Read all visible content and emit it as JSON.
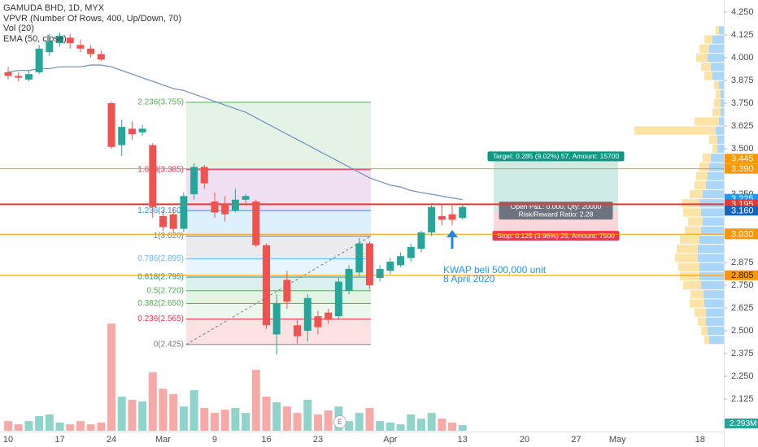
{
  "header": {
    "symbol": "GAMUDA BHD, 1D, MYX",
    "indicators": [
      "VPVR (Number Of Rows, 400, Up/Down, 70)",
      "Vol (20)",
      "EMA (50, close)"
    ]
  },
  "chart_data": {
    "type": "candlestick",
    "categories": [
      "10",
      null,
      null,
      null,
      null,
      "17",
      null,
      null,
      null,
      null,
      "24",
      null,
      null,
      null,
      null,
      "Mar",
      null,
      null,
      null,
      null,
      "9",
      null,
      null,
      null,
      null,
      "16",
      null,
      null,
      null,
      null,
      "23",
      null,
      null,
      null,
      null,
      null,
      null,
      "Apr",
      null,
      null,
      null,
      null,
      null,
      null,
      "13"
    ],
    "open": [
      3.92,
      3.9,
      3.88,
      3.92,
      4.03,
      4.08,
      4.11,
      4.07,
      4.05,
      4.02,
      3.75,
      3.52,
      3.61,
      3.59,
      3.52,
      3.13,
      3.14,
      3.06,
      3.25,
      3.4,
      3.21,
      3.2,
      3.16,
      3.22,
      3.21,
      2.97,
      2.48,
      2.78,
      2.53,
      2.5,
      2.58,
      2.6,
      2.58,
      2.72,
      2.82,
      2.98,
      2.79,
      2.83,
      2.86,
      2.9,
      2.95,
      3.04,
      3.13,
      3.14,
      3.12
    ],
    "high": [
      3.95,
      3.92,
      3.93,
      4.07,
      4.13,
      4.14,
      4.13,
      4.1,
      4.07,
      4.04,
      3.76,
      3.66,
      3.65,
      3.63,
      3.53,
      3.16,
      3.18,
      3.26,
      3.42,
      3.41,
      3.26,
      3.24,
      3.28,
      3.25,
      3.22,
      2.98,
      2.7,
      2.83,
      2.56,
      2.7,
      2.61,
      2.62,
      2.79,
      2.86,
      3.01,
      2.99,
      2.86,
      2.9,
      2.93,
      2.98,
      3.05,
      3.2,
      3.2,
      3.2,
      3.19
    ],
    "low": [
      3.88,
      3.87,
      3.87,
      3.91,
      4.01,
      4.06,
      4.05,
      4.03,
      4.0,
      3.98,
      3.5,
      3.46,
      3.55,
      3.57,
      3.12,
      3.05,
      3.04,
      3.04,
      3.22,
      3.28,
      3.12,
      3.1,
      3.15,
      3.2,
      2.96,
      2.51,
      2.37,
      2.62,
      2.43,
      2.44,
      2.48,
      2.54,
      2.56,
      2.7,
      2.8,
      2.73,
      2.77,
      2.81,
      2.85,
      2.88,
      2.93,
      3.02,
      3.08,
      3.08,
      3.11
    ],
    "close": [
      3.9,
      3.89,
      3.91,
      4.05,
      4.09,
      4.12,
      4.08,
      4.05,
      4.02,
      3.99,
      3.51,
      3.62,
      3.58,
      3.61,
      3.18,
      3.07,
      3.06,
      3.24,
      3.4,
      3.31,
      3.15,
      3.14,
      3.22,
      3.24,
      2.97,
      2.53,
      2.65,
      2.66,
      2.47,
      2.68,
      2.52,
      2.56,
      2.77,
      2.84,
      2.98,
      2.75,
      2.84,
      2.88,
      2.91,
      2.96,
      3.04,
      3.18,
      3.11,
      3.11,
      3.18
    ],
    "up_color": "#26a69a",
    "down_color": "#ef5350",
    "ylim": [
      1.951,
      4.317
    ],
    "xlim": [
      -0.79,
      69.3
    ],
    "yticks": [
      {
        "value": 4.25,
        "label": "4.250"
      },
      {
        "value": 4.125,
        "label": "4.125"
      },
      {
        "value": 4.0,
        "label": "4.000"
      },
      {
        "value": 3.875,
        "label": "3.875"
      },
      {
        "value": 3.75,
        "label": "3.750"
      },
      {
        "value": 3.625,
        "label": "3.625"
      },
      {
        "value": 3.5,
        "label": "3.500"
      },
      {
        "value": 3.25,
        "label": "3.250"
      },
      {
        "value": 2.875,
        "label": "2.875"
      },
      {
        "value": 2.75,
        "label": "2.750"
      },
      {
        "value": 2.625,
        "label": "2.625"
      },
      {
        "value": 2.5,
        "label": "2.500"
      },
      {
        "value": 2.375,
        "label": "2.375"
      },
      {
        "value": 2.25,
        "label": "2.250"
      },
      {
        "value": 2.125,
        "label": "2.125"
      }
    ],
    "xticks": [
      {
        "value": 50,
        "label": "20"
      },
      {
        "value": 55,
        "label": "27"
      },
      {
        "value": 59,
        "label": "May"
      },
      {
        "value": 67,
        "label": "18"
      }
    ],
    "volume": {
      "values": [
        3.9,
        2.6,
        3.9,
        5.9,
        6.6,
        3.3,
        2.6,
        3.9,
        2.6,
        3.3,
        43.3,
        13.8,
        12.5,
        11.8,
        23.6,
        17.0,
        14.8,
        9.8,
        16.4,
        9.2,
        7.2,
        8.5,
        9.2,
        7.2,
        24.6,
        13.8,
        11.5,
        9.8,
        7.2,
        12.5,
        6.6,
        8.2,
        9.8,
        3.9,
        7.2,
        9.2,
        3.9,
        3.3,
        2.6,
        6.6,
        4.9,
        7.2,
        4.9,
        3.3,
        2.293
      ],
      "ylim": [
        0,
        45
      ],
      "up_color": "#8fd3cb",
      "down_color": "#f7a9a8",
      "last_label": "2.293M",
      "last_color": "#26a69a"
    },
    "ema": {
      "values": [
        3.92,
        3.93,
        3.93,
        3.94,
        3.94,
        3.95,
        3.95,
        3.95,
        3.96,
        3.96,
        3.95,
        3.93,
        3.91,
        3.89,
        3.87,
        3.85,
        3.83,
        3.82,
        3.8,
        3.78,
        3.76,
        3.74,
        3.72,
        3.7,
        3.67,
        3.64,
        3.61,
        3.58,
        3.55,
        3.52,
        3.49,
        3.46,
        3.43,
        3.4,
        3.37,
        3.34,
        3.32,
        3.3,
        3.29,
        3.27,
        3.26,
        3.25,
        3.24,
        3.23,
        3.22
      ],
      "color": "#6f8fbf"
    },
    "vpvr": {
      "prices": [
        2.45,
        2.5,
        2.55,
        2.6,
        2.65,
        2.7,
        2.75,
        2.8,
        2.85,
        2.9,
        2.95,
        3.0,
        3.05,
        3.1,
        3.15,
        3.2,
        3.25,
        3.3,
        3.35,
        3.4,
        3.45,
        3.5,
        3.55,
        3.6,
        3.65,
        3.7,
        3.75,
        3.8,
        3.85,
        3.9,
        3.95,
        4.0,
        4.05,
        4.1,
        4.15
      ],
      "up": [
        18,
        20,
        22,
        22,
        24,
        25,
        28,
        30,
        30,
        32,
        32,
        30,
        28,
        26,
        28,
        30,
        26,
        22,
        20,
        18,
        16,
        8,
        8,
        10,
        6,
        4,
        4,
        4,
        6,
        14,
        16,
        20,
        18,
        14,
        6
      ],
      "down": [
        6,
        8,
        10,
        14,
        18,
        16,
        22,
        24,
        26,
        28,
        26,
        24,
        20,
        18,
        22,
        22,
        16,
        14,
        14,
        12,
        10,
        6,
        10,
        100,
        30,
        10,
        8,
        6,
        6,
        10,
        12,
        14,
        12,
        10,
        4
      ],
      "up_color": "#64b5f6",
      "down_color": "#fcd06a"
    },
    "price_lines": [
      {
        "price": 3.39,
        "color": "#ff9800"
      },
      {
        "price": 3.195,
        "color": "#e53935"
      },
      {
        "price": 3.03,
        "color": "#ff9800"
      },
      {
        "price": 2.805,
        "color": "#ff9800"
      }
    ],
    "price_labels": [
      {
        "value": 3.445,
        "label": "3.445",
        "color": "#ff9800"
      },
      {
        "value": 3.39,
        "label": "3.390",
        "color": "#ff9800"
      },
      {
        "value": 3.225,
        "label": "3.225",
        "color": "#2196f3"
      },
      {
        "value": 3.195,
        "label": "3.195",
        "color": "#e53935"
      },
      {
        "value": 3.16,
        "label": "3.160",
        "color": "#1565c0"
      },
      {
        "value": 3.035,
        "label": "3.035",
        "color": "#ff9800"
      },
      {
        "value": 3.03,
        "label": "3.030",
        "color": "#ff9800"
      },
      {
        "value": 2.805,
        "label": "2.805",
        "color": "#ff9800"
      }
    ],
    "fib": {
      "levels": [
        {
          "price": 2.425,
          "label": "0(2.425)",
          "color": "#787b86",
          "fill": "#f23645"
        },
        {
          "price": 2.565,
          "label": "0.236(2.565)",
          "color": "#f23645",
          "fill": "#81c784"
        },
        {
          "price": 2.65,
          "label": "0.382(2.650)",
          "color": "#4caf50",
          "fill": "#4caf50"
        },
        {
          "price": 2.72,
          "label": "0.5(2.720)",
          "color": "#4caf50",
          "fill": "#089981"
        },
        {
          "price": 2.795,
          "label": "0.618(2.795)",
          "color": "#089981",
          "fill": "#64b5f6"
        },
        {
          "price": 2.895,
          "label": "0.786(2.895)",
          "color": "#64b5f6",
          "fill": "#787b86"
        },
        {
          "price": 3.02,
          "label": "1(3.020)",
          "color": "#787b86",
          "fill": "#2196f3"
        },
        {
          "price": 3.16,
          "label": "1.236(3.160)",
          "color": "#2196f3",
          "fill": "#9c27b0"
        },
        {
          "price": 3.385,
          "label": "1.618(3.385)",
          "color": "#e91e63",
          "fill": "#4caf50"
        },
        {
          "price": 3.755,
          "label": "2.236(3.755)",
          "color": "#4caf50"
        }
      ]
    },
    "position": {
      "target": 3.445,
      "entry": 3.16,
      "stop": 3.035,
      "target_label": "Target: 0.285 (9.02%) 57, Amount: 15700",
      "pnl_label": "Open P&L: 0.000, Qty: 20000",
      "ratio_label": "Risk/Reward Ratio: 2.28",
      "stop_label": "Stop: 0.125 (3.96%) 25, Amount: 7500"
    },
    "annotation": [
      "KWAP beli 500,000 unit",
      "8 April 2020"
    ],
    "earnings_marker": "E"
  }
}
